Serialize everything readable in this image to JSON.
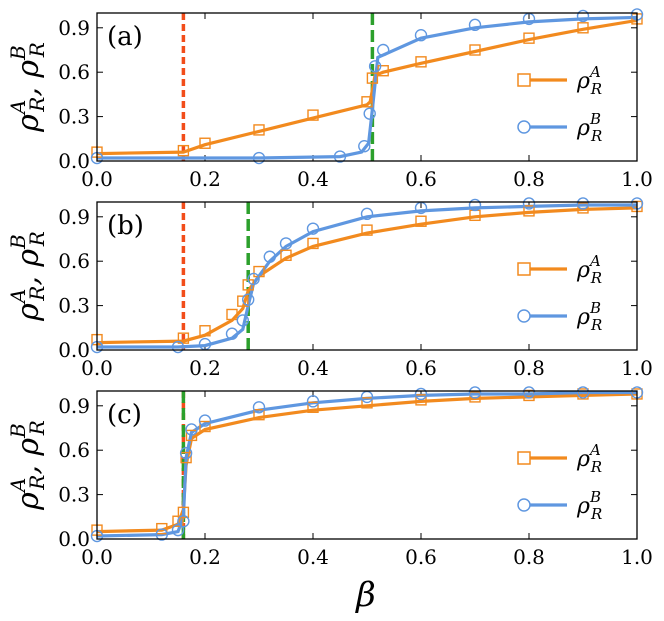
{
  "chart_data": {
    "type": "line",
    "xlabel": "β",
    "x_ticks": [
      "0.0",
      "0.2",
      "0.4",
      "0.6",
      "0.8",
      "1.0"
    ],
    "y_ticks": [
      "0.0",
      "0.3",
      "0.6",
      "0.9"
    ],
    "xlim": [
      0,
      1
    ],
    "ylim": [
      0,
      1
    ],
    "ylabel": {
      "rho": "ρ",
      "A": "A",
      "B": "B",
      "R": "R",
      "sep": ", "
    },
    "legend": [
      {
        "name": "A",
        "color": "#f28a1e",
        "marker": "square"
      },
      {
        "name": "B",
        "color": "#5f97e0",
        "marker": "circle"
      }
    ],
    "legend_position": "right",
    "colors": {
      "A": "#f28a1e",
      "B": "#5f97e0",
      "red_line": "#f24d1a",
      "green_line": "#2ca02c"
    },
    "panels": [
      {
        "label": "(a)",
        "red_vline": 0.16,
        "green_vline": 0.51,
        "seriesA": {
          "line": [
            [
              0,
              0.05
            ],
            [
              0.16,
              0.06
            ],
            [
              0.2,
              0.11
            ],
            [
              0.3,
              0.2
            ],
            [
              0.4,
              0.29
            ],
            [
              0.5,
              0.38
            ],
            [
              0.506,
              0.4
            ],
            [
              0.515,
              0.58
            ],
            [
              0.53,
              0.6
            ],
            [
              0.6,
              0.66
            ],
            [
              0.7,
              0.74
            ],
            [
              0.8,
              0.82
            ],
            [
              0.9,
              0.89
            ],
            [
              1.0,
              0.95
            ]
          ],
          "scatter": [
            [
              0,
              0.06
            ],
            [
              0.16,
              0.07
            ],
            [
              0.2,
              0.12
            ],
            [
              0.3,
              0.21
            ],
            [
              0.4,
              0.31
            ],
            [
              0.5,
              0.4
            ],
            [
              0.51,
              0.56
            ],
            [
              0.53,
              0.61
            ],
            [
              0.6,
              0.67
            ],
            [
              0.7,
              0.75
            ],
            [
              0.8,
              0.83
            ],
            [
              0.9,
              0.9
            ],
            [
              1.0,
              0.96
            ]
          ]
        },
        "seriesB": {
          "line": [
            [
              0,
              0.02
            ],
            [
              0.3,
              0.02
            ],
            [
              0.45,
              0.03
            ],
            [
              0.49,
              0.06
            ],
            [
              0.503,
              0.12
            ],
            [
              0.51,
              0.35
            ],
            [
              0.52,
              0.7
            ],
            [
              0.6,
              0.83
            ],
            [
              0.7,
              0.9
            ],
            [
              0.8,
              0.94
            ],
            [
              0.9,
              0.96
            ],
            [
              1.0,
              0.97
            ]
          ],
          "scatter": [
            [
              0,
              0.02
            ],
            [
              0.3,
              0.02
            ],
            [
              0.45,
              0.03
            ],
            [
              0.495,
              0.1
            ],
            [
              0.505,
              0.32
            ],
            [
              0.515,
              0.64
            ],
            [
              0.53,
              0.75
            ],
            [
              0.6,
              0.85
            ],
            [
              0.7,
              0.92
            ],
            [
              0.8,
              0.96
            ],
            [
              0.9,
              0.98
            ],
            [
              1.0,
              0.99
            ]
          ]
        }
      },
      {
        "label": "(b)",
        "red_vline": 0.16,
        "green_vline": 0.28,
        "seriesA": {
          "line": [
            [
              0,
              0.05
            ],
            [
              0.16,
              0.06
            ],
            [
              0.2,
              0.1
            ],
            [
              0.25,
              0.2
            ],
            [
              0.27,
              0.28
            ],
            [
              0.28,
              0.4
            ],
            [
              0.3,
              0.5
            ],
            [
              0.35,
              0.62
            ],
            [
              0.4,
              0.7
            ],
            [
              0.5,
              0.79
            ],
            [
              0.6,
              0.85
            ],
            [
              0.7,
              0.9
            ],
            [
              0.8,
              0.93
            ],
            [
              0.9,
              0.95
            ],
            [
              1.0,
              0.96
            ]
          ],
          "scatter": [
            [
              0,
              0.07
            ],
            [
              0.16,
              0.08
            ],
            [
              0.2,
              0.13
            ],
            [
              0.25,
              0.24
            ],
            [
              0.27,
              0.33
            ],
            [
              0.28,
              0.44
            ],
            [
              0.3,
              0.53
            ],
            [
              0.35,
              0.64
            ],
            [
              0.4,
              0.72
            ],
            [
              0.5,
              0.81
            ],
            [
              0.6,
              0.87
            ],
            [
              0.7,
              0.91
            ],
            [
              0.8,
              0.94
            ],
            [
              0.9,
              0.96
            ],
            [
              1.0,
              0.97
            ]
          ]
        },
        "seriesB": {
          "line": [
            [
              0,
              0.02
            ],
            [
              0.15,
              0.02
            ],
            [
              0.2,
              0.03
            ],
            [
              0.25,
              0.08
            ],
            [
              0.27,
              0.14
            ],
            [
              0.28,
              0.3
            ],
            [
              0.29,
              0.45
            ],
            [
              0.32,
              0.6
            ],
            [
              0.35,
              0.7
            ],
            [
              0.4,
              0.8
            ],
            [
              0.5,
              0.9
            ],
            [
              0.6,
              0.94
            ],
            [
              0.7,
              0.96
            ],
            [
              0.8,
              0.97
            ],
            [
              0.9,
              0.98
            ],
            [
              1.0,
              0.98
            ]
          ],
          "scatter": [
            [
              0,
              0.02
            ],
            [
              0.15,
              0.02
            ],
            [
              0.2,
              0.04
            ],
            [
              0.25,
              0.11
            ],
            [
              0.27,
              0.2
            ],
            [
              0.28,
              0.34
            ],
            [
              0.29,
              0.48
            ],
            [
              0.32,
              0.63
            ],
            [
              0.35,
              0.72
            ],
            [
              0.4,
              0.82
            ],
            [
              0.5,
              0.92
            ],
            [
              0.6,
              0.96
            ],
            [
              0.7,
              0.98
            ],
            [
              0.8,
              0.99
            ],
            [
              0.9,
              0.99
            ],
            [
              1.0,
              0.99
            ]
          ]
        }
      },
      {
        "label": "(c)",
        "red_vline": 0.16,
        "green_vline": 0.16,
        "seriesA": {
          "line": [
            [
              0,
              0.05
            ],
            [
              0.12,
              0.06
            ],
            [
              0.15,
              0.1
            ],
            [
              0.16,
              0.2
            ],
            [
              0.165,
              0.5
            ],
            [
              0.175,
              0.68
            ],
            [
              0.2,
              0.74
            ],
            [
              0.3,
              0.82
            ],
            [
              0.4,
              0.87
            ],
            [
              0.5,
              0.9
            ],
            [
              0.6,
              0.93
            ],
            [
              0.7,
              0.95
            ],
            [
              0.8,
              0.96
            ],
            [
              0.9,
              0.97
            ],
            [
              1.0,
              0.98
            ]
          ],
          "scatter": [
            [
              0,
              0.06
            ],
            [
              0.12,
              0.07
            ],
            [
              0.15,
              0.12
            ],
            [
              0.16,
              0.18
            ],
            [
              0.165,
              0.55
            ],
            [
              0.175,
              0.7
            ],
            [
              0.2,
              0.76
            ],
            [
              0.3,
              0.84
            ],
            [
              0.4,
              0.89
            ],
            [
              0.5,
              0.92
            ],
            [
              0.6,
              0.94
            ],
            [
              0.7,
              0.96
            ],
            [
              0.8,
              0.97
            ],
            [
              0.9,
              0.98
            ],
            [
              1.0,
              0.98
            ]
          ]
        },
        "seriesB": {
          "line": [
            [
              0,
              0.02
            ],
            [
              0.12,
              0.03
            ],
            [
              0.15,
              0.05
            ],
            [
              0.16,
              0.15
            ],
            [
              0.165,
              0.55
            ],
            [
              0.175,
              0.72
            ],
            [
              0.2,
              0.78
            ],
            [
              0.3,
              0.87
            ],
            [
              0.4,
              0.92
            ],
            [
              0.5,
              0.95
            ],
            [
              0.6,
              0.97
            ],
            [
              0.7,
              0.98
            ],
            [
              0.8,
              0.98
            ],
            [
              0.9,
              0.99
            ],
            [
              1.0,
              0.99
            ]
          ],
          "scatter": [
            [
              0,
              0.02
            ],
            [
              0.12,
              0.03
            ],
            [
              0.15,
              0.06
            ],
            [
              0.16,
              0.12
            ],
            [
              0.165,
              0.58
            ],
            [
              0.175,
              0.74
            ],
            [
              0.2,
              0.8
            ],
            [
              0.3,
              0.89
            ],
            [
              0.4,
              0.93
            ],
            [
              0.5,
              0.96
            ],
            [
              0.6,
              0.98
            ],
            [
              0.7,
              0.99
            ],
            [
              0.8,
              0.99
            ],
            [
              0.9,
              0.99
            ],
            [
              1.0,
              0.99
            ]
          ]
        }
      }
    ]
  }
}
